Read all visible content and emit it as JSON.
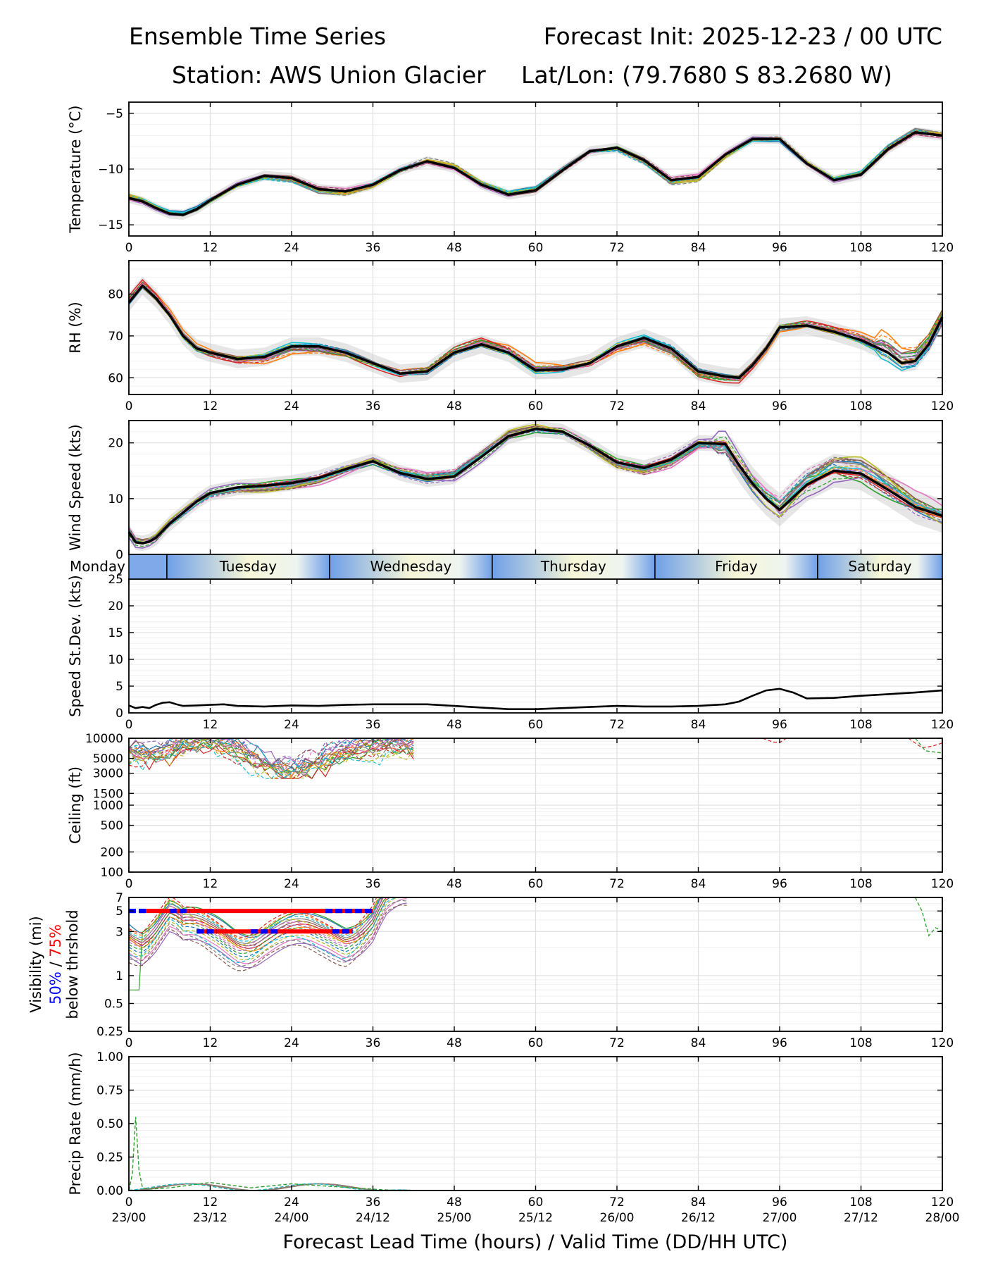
{
  "header": {
    "title_left": "Ensemble Time Series",
    "title_right": "Forecast Init: 2025-12-23 / 00 UTC",
    "station": "Station: AWS Union Glacier",
    "latlon": "Lat/Lon: (79.7680 S 83.2680 W)"
  },
  "colors": {
    "members": [
      "#1f77b4",
      "#ff7f0e",
      "#2ca02c",
      "#d62728",
      "#9467bd",
      "#8c564b",
      "#e377c2",
      "#7f7f7f",
      "#bcbd22",
      "#17becf"
    ],
    "mean": "#000000",
    "spread": "#c8c8c8",
    "p50": "#0000ff",
    "p75": "#ff0000",
    "daystrip_start": "#6f9fe8",
    "daystrip_end": "#f7f7d7"
  },
  "x_axis": {
    "label": "Forecast Lead Time (hours) / Valid Time (DD/HH UTC)",
    "range": [
      0,
      120
    ],
    "ticks": [
      0,
      12,
      24,
      36,
      48,
      60,
      72,
      84,
      96,
      108,
      120
    ],
    "valid_times": [
      "23/00",
      "23/12",
      "24/00",
      "24/12",
      "25/00",
      "25/12",
      "26/00",
      "26/12",
      "27/00",
      "27/12",
      "28/00"
    ]
  },
  "day_strip": {
    "labels": [
      "Monday",
      "Tuesday",
      "Wednesday",
      "Thursday",
      "Friday",
      "Saturday"
    ],
    "boundaries_hours": [
      5.6,
      29.6,
      53.6,
      77.6,
      101.6
    ]
  },
  "chart_data": [
    {
      "type": "line",
      "id": "temperature",
      "ylabel": "Temperature (°C)",
      "ylim": [
        -16,
        -4
      ],
      "yticks": [
        -15,
        -10,
        -5
      ],
      "ytick_labels": [
        "−15",
        "−10",
        "−5"
      ],
      "ensemble_members": 20,
      "series": [
        {
          "name": "ensemble mean",
          "x": [
            0,
            2,
            4,
            6,
            8,
            10,
            12,
            16,
            20,
            24,
            28,
            32,
            36,
            40,
            44,
            48,
            52,
            56,
            60,
            64,
            68,
            72,
            76,
            80,
            84,
            88,
            92,
            96,
            100,
            104,
            108,
            112,
            116,
            120
          ],
          "values": [
            -12.6,
            -12.9,
            -13.5,
            -14.0,
            -14.1,
            -13.6,
            -12.8,
            -11.4,
            -10.6,
            -10.8,
            -11.8,
            -12.0,
            -11.4,
            -10.1,
            -9.3,
            -9.9,
            -11.4,
            -12.3,
            -11.9,
            -10.1,
            -8.4,
            -8.1,
            -9.2,
            -11.0,
            -10.7,
            -8.7,
            -7.3,
            -7.3,
            -9.5,
            -11.0,
            -10.5,
            -8.2,
            -6.7,
            -7.0
          ]
        }
      ]
    },
    {
      "type": "line",
      "id": "rh",
      "ylabel": "RH (%)",
      "ylim": [
        56,
        88
      ],
      "yticks": [
        60,
        70,
        80
      ],
      "ytick_labels": [
        "60",
        "70",
        "80"
      ],
      "ensemble_members": 20,
      "series": [
        {
          "name": "ensemble mean",
          "x": [
            0,
            2,
            4,
            6,
            8,
            10,
            12,
            16,
            20,
            24,
            28,
            32,
            36,
            40,
            44,
            48,
            52,
            56,
            60,
            64,
            68,
            72,
            76,
            80,
            84,
            88,
            90,
            92,
            94,
            96,
            100,
            104,
            108,
            112,
            114,
            116,
            118,
            120
          ],
          "values": [
            78,
            82,
            79,
            75,
            70,
            67,
            66,
            64.5,
            65,
            67.5,
            67.5,
            66,
            63.5,
            61,
            61.5,
            66,
            68,
            66,
            61.8,
            62,
            63.5,
            67.5,
            69.5,
            67,
            61.5,
            60.3,
            60,
            63,
            67,
            72,
            72.5,
            71,
            69,
            66,
            63.5,
            64,
            68,
            74.5
          ]
        }
      ]
    },
    {
      "type": "line",
      "id": "wind_speed",
      "ylabel": "Wind Speed (kts)",
      "ylim": [
        0,
        24
      ],
      "yticks": [
        0,
        10,
        20
      ],
      "ytick_labels": [
        "0",
        "10",
        "20"
      ],
      "ensemble_members": 20,
      "series": [
        {
          "name": "ensemble mean",
          "x": [
            0,
            1,
            2,
            3,
            4,
            6,
            8,
            10,
            12,
            16,
            20,
            24,
            28,
            32,
            36,
            40,
            44,
            48,
            52,
            56,
            60,
            64,
            68,
            72,
            76,
            80,
            84,
            88,
            90,
            92,
            94,
            96,
            100,
            104,
            108,
            112,
            116,
            120
          ],
          "values": [
            4,
            2.2,
            2,
            2.3,
            3,
            5.5,
            7.5,
            9.5,
            11,
            12,
            12.3,
            12.8,
            13.7,
            15.3,
            16.7,
            14.6,
            13.5,
            14,
            17.5,
            21.2,
            22.5,
            22,
            19.5,
            16.5,
            15.5,
            17,
            20,
            19.8,
            16,
            12.7,
            10,
            8,
            12.5,
            15,
            14.5,
            11.6,
            8.5,
            6.9
          ]
        }
      ]
    },
    {
      "type": "line",
      "id": "speed_stdev",
      "ylabel": "Speed St.Dev. (kts)",
      "ylim": [
        0,
        25
      ],
      "yticks": [
        0,
        5,
        10,
        15,
        20,
        25
      ],
      "ytick_labels": [
        "0",
        "5",
        "10",
        "15",
        "20",
        "25"
      ],
      "series": [
        {
          "name": "speed st.dev.",
          "x": [
            0,
            1,
            2,
            3,
            4,
            5,
            6,
            7,
            8,
            10,
            12,
            14,
            16,
            20,
            24,
            28,
            32,
            36,
            40,
            44,
            48,
            52,
            56,
            60,
            64,
            68,
            72,
            76,
            80,
            84,
            88,
            90,
            92,
            94,
            96,
            98,
            100,
            104,
            108,
            112,
            116,
            120
          ],
          "values": [
            1.4,
            0.9,
            1.1,
            0.9,
            1.5,
            1.9,
            2.0,
            1.6,
            1.3,
            1.4,
            1.5,
            1.6,
            1.3,
            1.2,
            1.4,
            1.3,
            1.5,
            1.6,
            1.6,
            1.6,
            1.3,
            1.0,
            0.7,
            0.7,
            0.9,
            1.1,
            1.3,
            1.2,
            1.2,
            1.3,
            1.6,
            2.1,
            3.2,
            4.2,
            4.5,
            3.8,
            2.7,
            2.8,
            3.2,
            3.5,
            3.8,
            4.2
          ]
        }
      ]
    },
    {
      "type": "line",
      "id": "ceiling",
      "ylabel": "Ceiling (ft)",
      "yscale": "log",
      "ylim": [
        100,
        10000
      ],
      "yticks": [
        100,
        200,
        500,
        1000,
        1500,
        3000,
        5000,
        10000
      ],
      "ytick_labels": [
        "100",
        "200",
        "500",
        "1000",
        "1500",
        "3000",
        "5000",
        "10000"
      ],
      "ensemble_members": 20,
      "series": [
        {
          "name": "member envelope",
          "x": [
            0,
            4,
            8,
            12,
            16,
            20,
            24,
            28,
            32,
            36,
            38,
            40
          ],
          "values": [
            7000,
            7500,
            9000,
            8000,
            6000,
            5000,
            4300,
            4600,
            5200,
            7200,
            9000,
            10000
          ]
        }
      ]
    },
    {
      "type": "line",
      "id": "visibility",
      "ylabel": "Visibility (mi)",
      "ylabel_extra": [
        "50%",
        "/",
        "75%",
        "below thrshold"
      ],
      "yscale": "log",
      "ylim": [
        0.25,
        7
      ],
      "yticks": [
        0.25,
        0.5,
        1,
        3,
        5,
        7
      ],
      "ytick_labels": [
        "0.25",
        "0.5",
        "1",
        "3",
        "5",
        "7"
      ],
      "threshold_bars": [
        {
          "name": "50% below threshold",
          "level": 5,
          "segments": [
            [
              0,
              2.5
            ],
            [
              6,
              9
            ],
            [
              29,
              36
            ]
          ]
        },
        {
          "name": "75% below threshold",
          "level": 5,
          "segments": [
            [
              2.5,
              36
            ]
          ]
        },
        {
          "name": "50% below threshold",
          "level": 3,
          "segments": [
            [
              10,
              13
            ],
            [
              18,
              22
            ],
            [
              30,
              33
            ]
          ]
        },
        {
          "name": "75% below threshold",
          "level": 3,
          "segments": [
            [
              10,
              33
            ]
          ]
        }
      ],
      "series": [
        {
          "name": "member median",
          "x": [
            0,
            2,
            4,
            6,
            8,
            12,
            16,
            20,
            24,
            28,
            32,
            36,
            38,
            40
          ],
          "values": [
            3,
            2.8,
            3.5,
            4.5,
            3,
            2.6,
            2.5,
            2.7,
            2.6,
            2.5,
            2.8,
            4.2,
            6.5,
            7
          ]
        }
      ]
    },
    {
      "type": "line",
      "id": "precip",
      "ylabel": "Precip Rate (mm/h)",
      "ylim": [
        0,
        1
      ],
      "yticks": [
        0,
        0.25,
        0.5,
        0.75,
        1.0
      ],
      "ytick_labels": [
        "0.00",
        "0.25",
        "0.50",
        "0.75",
        "1.00"
      ],
      "series": [
        {
          "name": "member peak",
          "x": [
            0,
            0.5,
            1,
            1.5,
            2,
            3,
            6,
            12,
            18,
            24,
            30,
            36,
            40
          ],
          "values": [
            0,
            0.12,
            0.55,
            0.15,
            0.02,
            0.01,
            0.02,
            0.06,
            0.02,
            0.05,
            0.03,
            0.01,
            0
          ]
        }
      ]
    }
  ]
}
